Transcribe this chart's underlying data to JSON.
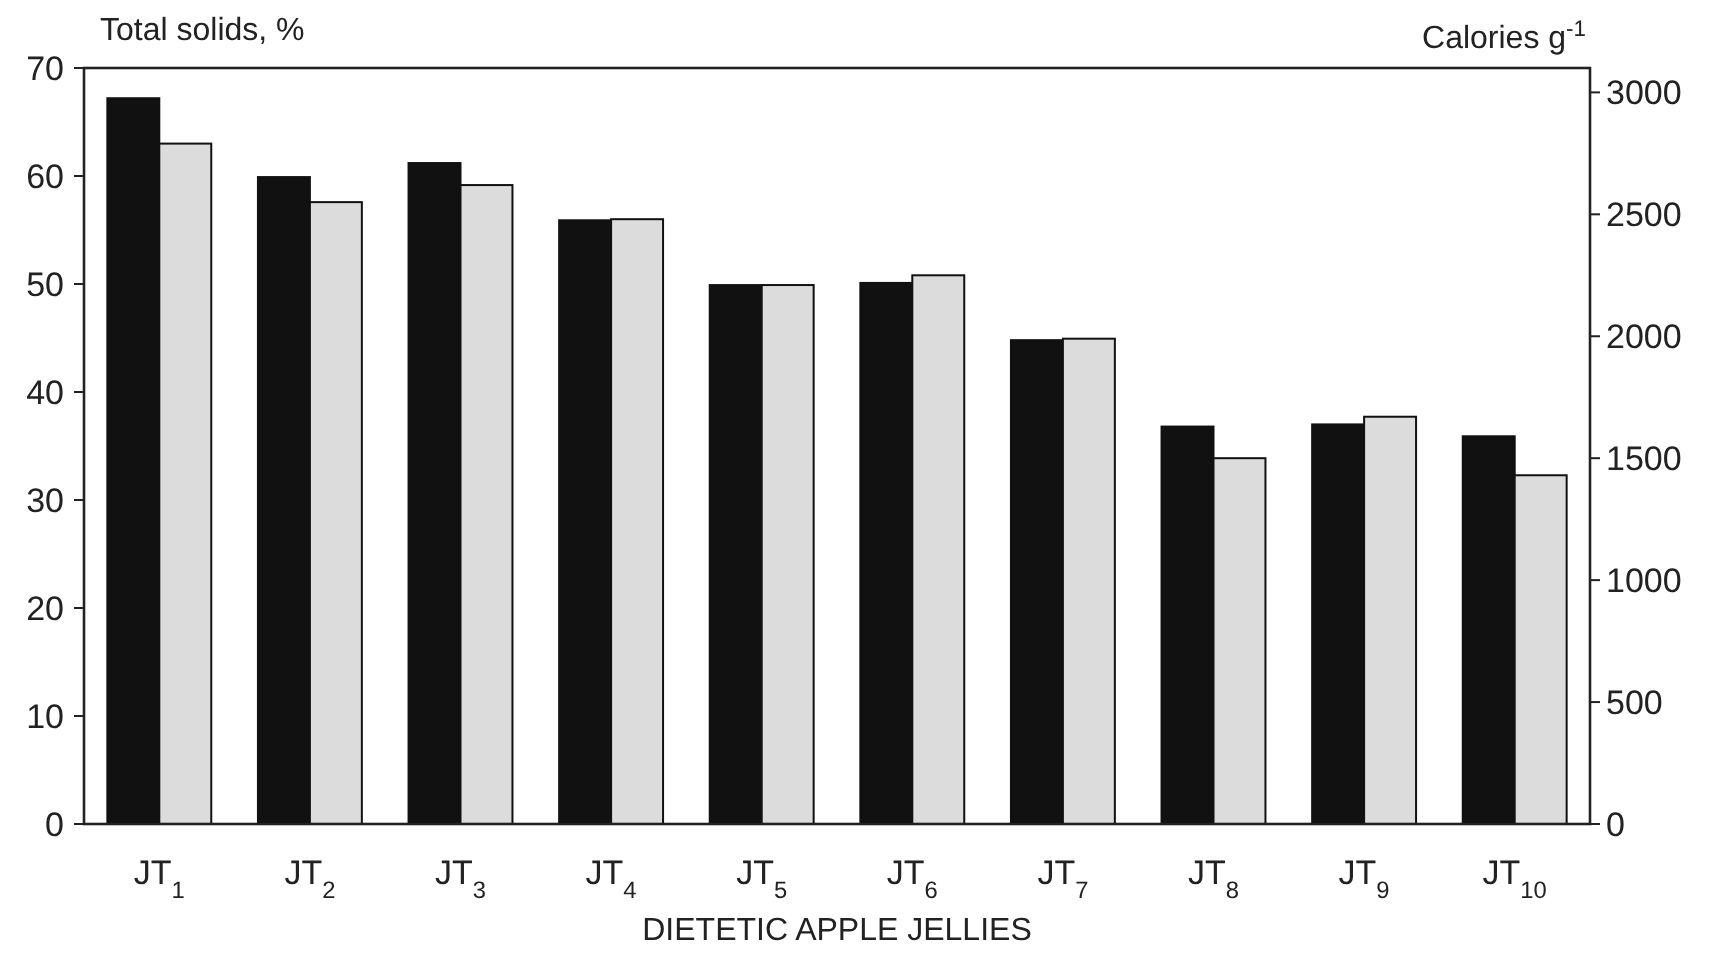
{
  "chart_data": {
    "type": "bar",
    "xlabel": "DIETETIC APPLE JELLIES",
    "ylabel": "Total solids, %",
    "y2label": "Calories g$^{-1}$",
    "categories": [
      "JT$_{1}$",
      "JT$_{2}$",
      "JT$_{3}$",
      "JT$_{4}$",
      "JT$_{5}$",
      "JT$_{6}$",
      "JT$_{7}$",
      "JT$_{8}$",
      "JT$_{9}$",
      "JT$_{10}$"
    ],
    "series": [
      {
        "color": "#111111",
        "values": [
          67.2,
          59.9,
          61.2,
          55.9,
          49.9,
          50.1,
          44.8,
          36.8,
          37.0,
          35.9
        ]
      },
      {
        "color": "#dcdcdc",
        "axis": "y2",
        "values": [
          2790,
          2550,
          2620,
          2480,
          2210,
          2250,
          1990,
          1500,
          1670,
          1430
        ]
      }
    ],
    "ylim": [
      0,
      70
    ],
    "yticks": [
      0,
      10,
      20,
      30,
      40,
      50,
      60,
      70
    ],
    "y2lim": [
      0,
      3100
    ],
    "y2ticks": [
      0,
      500,
      1000,
      1500,
      2000,
      2500,
      3000
    ]
  }
}
